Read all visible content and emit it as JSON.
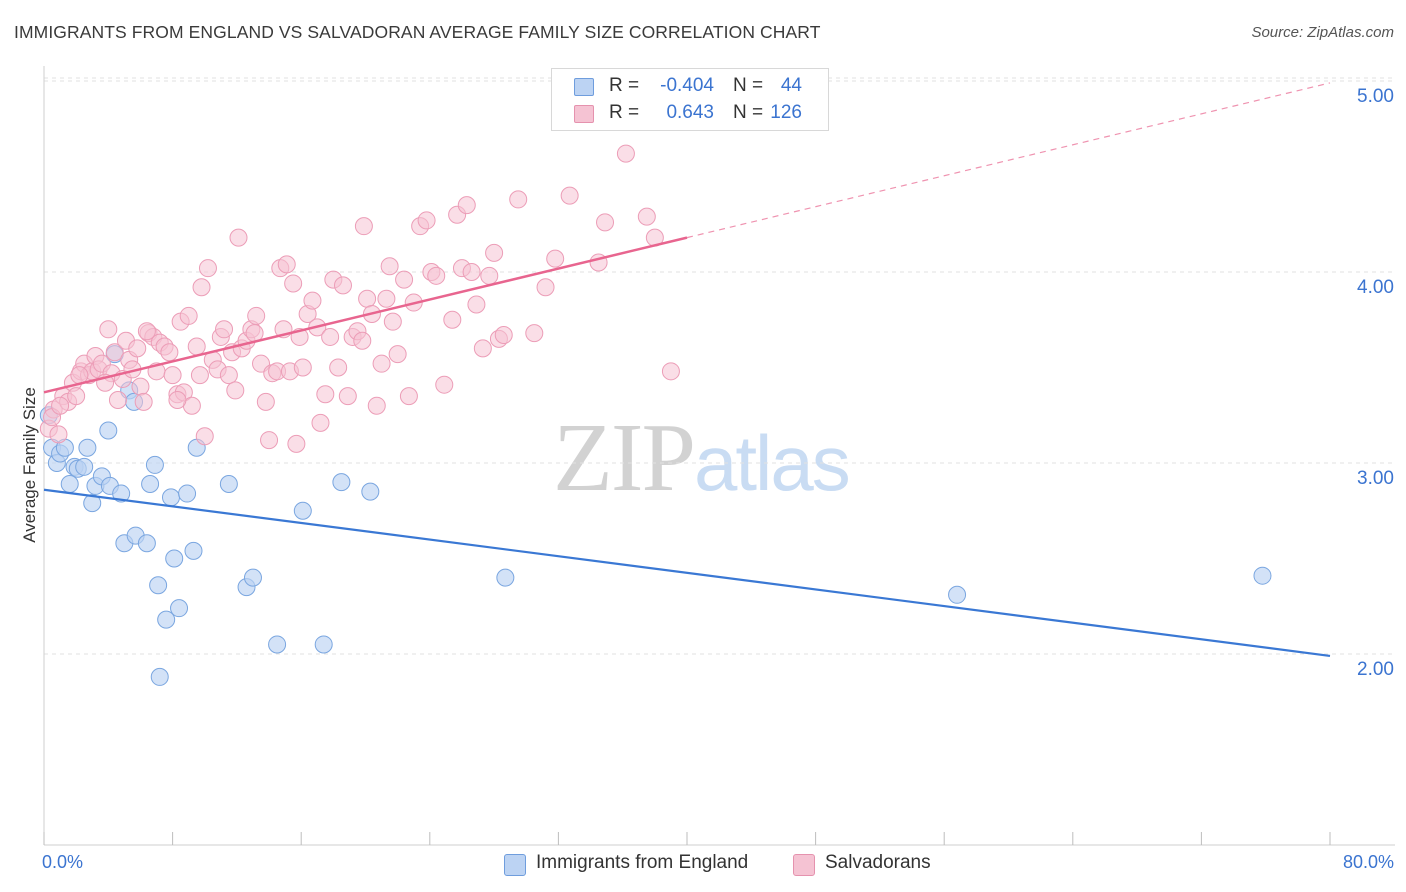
{
  "title": "IMMIGRANTS FROM ENGLAND VS SALVADORAN AVERAGE FAMILY SIZE CORRELATION CHART",
  "source": "Source: ZipAtlas.com",
  "watermark": {
    "zip": "ZIP",
    "atlas": "atlas"
  },
  "colors": {
    "blue": "#3a78d4",
    "blue_fill": "#bcd3f3",
    "pink": "#e8658f",
    "pink_fill": "#f5c3d3",
    "grid": "#e2e2e2",
    "axis_text": "#3b74d0"
  },
  "legend": {
    "rows": [
      {
        "r_label": "R =",
        "r_value": "-0.404",
        "n_label": "N =",
        "n_value": "44"
      },
      {
        "r_label": "R =",
        "r_value": "0.643",
        "n_label": "N =",
        "n_value": "126"
      }
    ]
  },
  "bottom_legend": {
    "england": "Immigrants from England",
    "salvadorans": "Salvadorans"
  },
  "chart_data": {
    "type": "scatter",
    "title": "IMMIGRANTS FROM ENGLAND VS SALVADORAN AVERAGE FAMILY SIZE CORRELATION CHART",
    "xlabel": "",
    "ylabel": "Average Family Size",
    "xlim": [
      0,
      80
    ],
    "ylim": [
      1.0,
      5.1
    ],
    "x_tick_labels": [
      "0.0%",
      "80.0%"
    ],
    "y_ticks": [
      2.0,
      3.0,
      4.0,
      5.0
    ],
    "y_tick_labels": [
      "2.00",
      "3.00",
      "4.00",
      "5.00"
    ],
    "grid": true,
    "series": [
      {
        "name": "Immigrants from England",
        "color": "blue",
        "trend": {
          "x0": 0,
          "y0": 2.86,
          "x1": 80,
          "y1": 1.99
        },
        "points": [
          [
            0.3,
            3.25
          ],
          [
            0.5,
            3.08
          ],
          [
            0.8,
            3.0
          ],
          [
            1.0,
            3.05
          ],
          [
            1.3,
            3.08
          ],
          [
            1.6,
            2.89
          ],
          [
            1.9,
            2.98
          ],
          [
            2.1,
            2.97
          ],
          [
            2.5,
            2.98
          ],
          [
            2.7,
            3.08
          ],
          [
            3.0,
            2.79
          ],
          [
            3.2,
            2.88
          ],
          [
            3.6,
            2.93
          ],
          [
            4.0,
            3.17
          ],
          [
            4.1,
            2.88
          ],
          [
            4.4,
            3.57
          ],
          [
            4.8,
            2.84
          ],
          [
            5.0,
            2.58
          ],
          [
            5.3,
            3.38
          ],
          [
            5.6,
            3.32
          ],
          [
            5.7,
            2.62
          ],
          [
            6.4,
            2.58
          ],
          [
            6.6,
            2.89
          ],
          [
            6.9,
            2.99
          ],
          [
            7.1,
            2.36
          ],
          [
            7.6,
            2.18
          ],
          [
            7.9,
            2.82
          ],
          [
            8.1,
            2.5
          ],
          [
            8.4,
            2.24
          ],
          [
            8.9,
            2.84
          ],
          [
            9.3,
            2.54
          ],
          [
            9.5,
            3.08
          ],
          [
            11.5,
            2.89
          ],
          [
            12.6,
            2.35
          ],
          [
            13.0,
            2.4
          ],
          [
            14.5,
            2.05
          ],
          [
            16.1,
            2.75
          ],
          [
            17.4,
            2.05
          ],
          [
            18.5,
            2.9
          ],
          [
            20.3,
            2.85
          ],
          [
            28.7,
            2.4
          ],
          [
            56.8,
            2.31
          ],
          [
            75.8,
            2.41
          ],
          [
            7.2,
            1.88
          ]
        ]
      },
      {
        "name": "Salvadorans",
        "color": "pink",
        "trend": {
          "x0": 0,
          "y0": 3.37,
          "x1": 40,
          "y1": 4.18,
          "dash_x1": 80,
          "dash_y1": 4.99
        },
        "points": [
          [
            0.3,
            3.18
          ],
          [
            0.6,
            3.28
          ],
          [
            0.9,
            3.15
          ],
          [
            1.2,
            3.35
          ],
          [
            1.5,
            3.32
          ],
          [
            1.8,
            3.42
          ],
          [
            2.0,
            3.35
          ],
          [
            2.3,
            3.48
          ],
          [
            2.5,
            3.52
          ],
          [
            2.8,
            3.46
          ],
          [
            3.0,
            3.48
          ],
          [
            3.2,
            3.56
          ],
          [
            3.4,
            3.49
          ],
          [
            3.6,
            3.52
          ],
          [
            4.0,
            3.7
          ],
          [
            4.2,
            3.47
          ],
          [
            4.4,
            3.58
          ],
          [
            4.6,
            3.33
          ],
          [
            4.9,
            3.44
          ],
          [
            5.1,
            3.64
          ],
          [
            5.3,
            3.54
          ],
          [
            5.5,
            3.49
          ],
          [
            5.8,
            3.6
          ],
          [
            6.0,
            3.4
          ],
          [
            6.2,
            3.32
          ],
          [
            6.5,
            3.68
          ],
          [
            6.8,
            3.66
          ],
          [
            7.0,
            3.48
          ],
          [
            7.2,
            3.63
          ],
          [
            7.5,
            3.61
          ],
          [
            7.8,
            3.58
          ],
          [
            8.0,
            3.46
          ],
          [
            8.3,
            3.36
          ],
          [
            8.5,
            3.74
          ],
          [
            8.7,
            3.37
          ],
          [
            9.0,
            3.77
          ],
          [
            9.2,
            3.3
          ],
          [
            9.5,
            3.61
          ],
          [
            9.8,
            3.92
          ],
          [
            10.0,
            3.14
          ],
          [
            10.2,
            4.02
          ],
          [
            10.5,
            3.54
          ],
          [
            10.8,
            3.49
          ],
          [
            11.0,
            3.66
          ],
          [
            11.2,
            3.7
          ],
          [
            11.5,
            3.46
          ],
          [
            11.7,
            3.58
          ],
          [
            11.9,
            3.38
          ],
          [
            12.1,
            4.18
          ],
          [
            12.3,
            3.6
          ],
          [
            12.6,
            3.64
          ],
          [
            12.9,
            3.7
          ],
          [
            13.2,
            3.77
          ],
          [
            13.5,
            3.52
          ],
          [
            13.8,
            3.32
          ],
          [
            14.0,
            3.12
          ],
          [
            14.2,
            3.47
          ],
          [
            14.5,
            3.48
          ],
          [
            14.7,
            4.02
          ],
          [
            14.9,
            3.7
          ],
          [
            15.1,
            4.04
          ],
          [
            15.3,
            3.48
          ],
          [
            15.5,
            3.94
          ],
          [
            15.7,
            3.1
          ],
          [
            15.9,
            3.66
          ],
          [
            16.1,
            3.5
          ],
          [
            16.4,
            3.78
          ],
          [
            16.7,
            3.85
          ],
          [
            17.0,
            3.71
          ],
          [
            17.2,
            3.21
          ],
          [
            17.5,
            3.36
          ],
          [
            17.8,
            3.66
          ],
          [
            18.0,
            3.96
          ],
          [
            18.3,
            3.5
          ],
          [
            18.6,
            3.93
          ],
          [
            18.9,
            3.35
          ],
          [
            19.2,
            3.66
          ],
          [
            19.5,
            3.69
          ],
          [
            19.8,
            3.64
          ],
          [
            20.1,
            3.86
          ],
          [
            20.4,
            3.78
          ],
          [
            20.7,
            3.3
          ],
          [
            21.0,
            3.52
          ],
          [
            21.3,
            3.86
          ],
          [
            21.5,
            4.03
          ],
          [
            21.7,
            3.74
          ],
          [
            22.0,
            3.57
          ],
          [
            22.4,
            3.96
          ],
          [
            22.7,
            3.35
          ],
          [
            23.0,
            3.84
          ],
          [
            23.4,
            4.24
          ],
          [
            23.8,
            4.27
          ],
          [
            24.1,
            4.0
          ],
          [
            24.4,
            3.98
          ],
          [
            24.9,
            3.41
          ],
          [
            25.4,
            3.75
          ],
          [
            25.7,
            4.3
          ],
          [
            26.0,
            4.02
          ],
          [
            26.3,
            4.35
          ],
          [
            26.6,
            4.0
          ],
          [
            26.9,
            3.83
          ],
          [
            27.3,
            3.6
          ],
          [
            27.7,
            3.98
          ],
          [
            28.0,
            4.1
          ],
          [
            28.3,
            3.65
          ],
          [
            28.6,
            3.67
          ],
          [
            29.5,
            4.38
          ],
          [
            30.5,
            3.68
          ],
          [
            31.2,
            3.92
          ],
          [
            31.8,
            4.07
          ],
          [
            32.7,
            4.4
          ],
          [
            34.5,
            4.05
          ],
          [
            34.9,
            4.26
          ],
          [
            36.2,
            4.62
          ],
          [
            37.5,
            4.29
          ],
          [
            38.0,
            4.18
          ],
          [
            39.0,
            3.48
          ],
          [
            8.3,
            3.33
          ],
          [
            3.8,
            3.42
          ],
          [
            6.4,
            3.69
          ],
          [
            9.7,
            3.46
          ],
          [
            13.1,
            3.68
          ],
          [
            19.9,
            4.24
          ],
          [
            0.5,
            3.24
          ],
          [
            1.0,
            3.3
          ],
          [
            2.2,
            3.46
          ]
        ]
      }
    ]
  }
}
